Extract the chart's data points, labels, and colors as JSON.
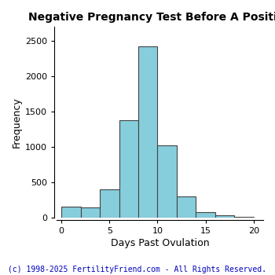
{
  "title": "Negative Pregnancy Test Before A Positive",
  "xlabel": "Days Past Ovulation",
  "ylabel": "Frequency",
  "bar_color": "#87CEDC",
  "edge_color": "#444444",
  "background_color": "#ffffff",
  "xlim": [
    -0.5,
    21
  ],
  "ylim": [
    0,
    2700
  ],
  "xticks": [
    0,
    5,
    10,
    15,
    20
  ],
  "yticks": [
    0,
    500,
    1000,
    1500,
    2000,
    2500
  ],
  "copyright": "(c) 1998-2025 FertilityFriend.com - All Rights Reserved.",
  "bin_left": [
    0,
    2,
    4,
    6,
    8,
    10,
    12,
    14,
    16,
    18
  ],
  "heights": [
    150,
    140,
    400,
    1380,
    2420,
    1020,
    300,
    80,
    30,
    10
  ],
  "bin_width": 2,
  "title_fontsize": 10,
  "axis_label_fontsize": 9,
  "tick_fontsize": 8,
  "copyright_fontsize": 7
}
